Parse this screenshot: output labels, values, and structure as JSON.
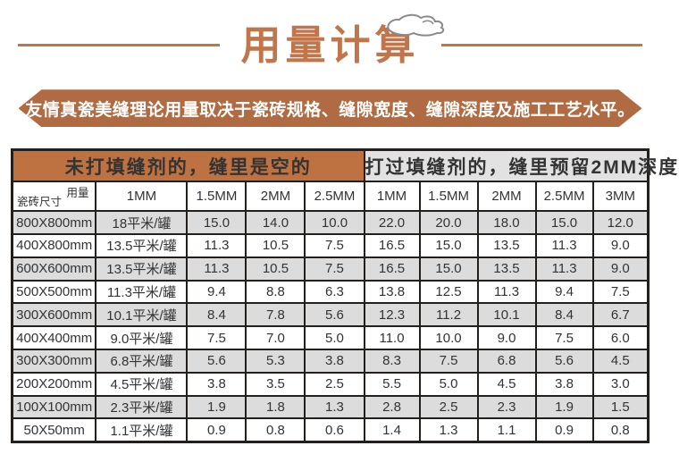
{
  "page": {
    "title": "用量计算",
    "banner": "友情真瓷美缝理论用量取决于瓷砖规格、缝隙宽度、缝隙深度及施工工艺水平。"
  },
  "colors": {
    "accent_orange": "#C1754A",
    "banner_bg": "#B16B42",
    "group_header_left_bg": "#BE7141",
    "group_header_right_bg": "#E2E2E2",
    "alt_row_bg": "#DCDCDC",
    "table_border": "#231F1C"
  },
  "icons": {
    "hand_sketch": "hand-sketch-icon"
  },
  "table": {
    "group_headers": [
      {
        "label": "未打填缝剂的，缝里是空的"
      },
      {
        "label": "打过填缝剂的，缝里预留2MM深度"
      }
    ],
    "corner": {
      "top_right": "用量",
      "bottom_left": "瓷砖尺寸"
    },
    "columns": [
      "1MM",
      "1.5MM",
      "2MM",
      "2.5MM",
      "1MM",
      "1.5MM",
      "2MM",
      "2.5MM",
      "3MM"
    ],
    "rows": [
      {
        "size": "800X800mm",
        "cells": [
          "18平米/罐",
          "15.0",
          "14.0",
          "10.0",
          "22.0",
          "20.0",
          "18.0",
          "15.0",
          "12.0"
        ]
      },
      {
        "size": "400X800mm",
        "cells": [
          "13.5平米/罐",
          "11.3",
          "10.5",
          "7.5",
          "16.5",
          "15.0",
          "13.5",
          "11.3",
          "9.0"
        ]
      },
      {
        "size": "600X600mm",
        "cells": [
          "13.5平米/罐",
          "11.3",
          "10.5",
          "7.5",
          "16.5",
          "15.0",
          "13.5",
          "11.3",
          "9.0"
        ]
      },
      {
        "size": "500X500mm",
        "cells": [
          "11.3平米/罐",
          "9.4",
          "8.8",
          "6.3",
          "13.8",
          "12.5",
          "11.3",
          "9.4",
          "7.5"
        ]
      },
      {
        "size": "300X600mm",
        "cells": [
          "10.1平米/罐",
          "8.4",
          "7.8",
          "5.6",
          "12.3",
          "11.2",
          "10.1",
          "8.4",
          "6.7"
        ]
      },
      {
        "size": "400X400mm",
        "cells": [
          "9.0平米/罐",
          "7.5",
          "7.0",
          "5.0",
          "11.0",
          "10.0",
          "9.0",
          "7.5",
          "6.0"
        ]
      },
      {
        "size": "300X300mm",
        "cells": [
          "6.8平米/罐",
          "5.6",
          "5.3",
          "3.8",
          "8.3",
          "7.5",
          "6.8",
          "5.6",
          "4.5"
        ]
      },
      {
        "size": "200X200mm",
        "cells": [
          "4.5平米/罐",
          "3.8",
          "3.5",
          "2.5",
          "5.5",
          "5.0",
          "4.5",
          "3.8",
          "3.0"
        ]
      },
      {
        "size": "100X100mm",
        "cells": [
          "2.3平米/罐",
          "1.9",
          "1.8",
          "1.3",
          "2.8",
          "2.5",
          "2.3",
          "1.9",
          "1.5"
        ]
      },
      {
        "size": "50X50mm",
        "cells": [
          "1.1平米/罐",
          "0.9",
          "0.8",
          "0.6",
          "1.4",
          "1.3",
          "1.1",
          "0.9",
          "0.8"
        ]
      }
    ]
  }
}
